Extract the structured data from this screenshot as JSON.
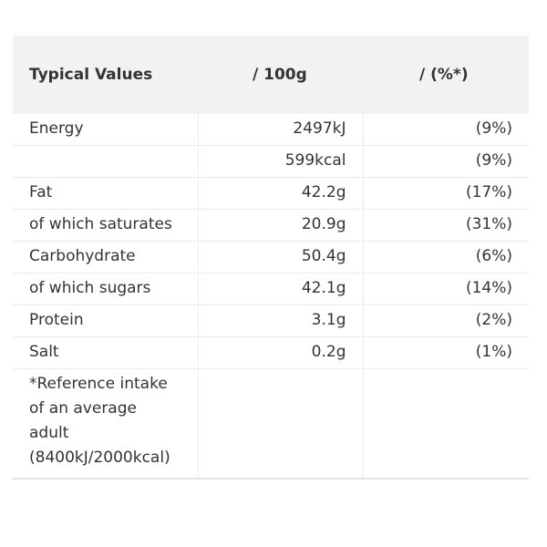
{
  "nutrition_table": {
    "headers": {
      "col1": "Typical Values",
      "col2": "/ 100g",
      "col3": "/ (%*)"
    },
    "rows": [
      {
        "label": "Energy",
        "per100g": "2497kJ",
        "percent": "(9%)"
      },
      {
        "label": "",
        "per100g": "599kcal",
        "percent": "(9%)"
      },
      {
        "label": "Fat",
        "per100g": "42.2g",
        "percent": "(17%)"
      },
      {
        "label": "of which saturates",
        "per100g": "20.9g",
        "percent": "(31%)"
      },
      {
        "label": "Carbohydrate",
        "per100g": "50.4g",
        "percent": "(6%)"
      },
      {
        "label": "of which sugars",
        "per100g": "42.1g",
        "percent": "(14%)"
      },
      {
        "label": "Protein",
        "per100g": "3.1g",
        "percent": "(2%)"
      },
      {
        "label": "Salt",
        "per100g": "0.2g",
        "percent": "(1%)"
      }
    ],
    "footnote": "*Reference intake of an average adult (8400kJ/2000kcal)"
  }
}
